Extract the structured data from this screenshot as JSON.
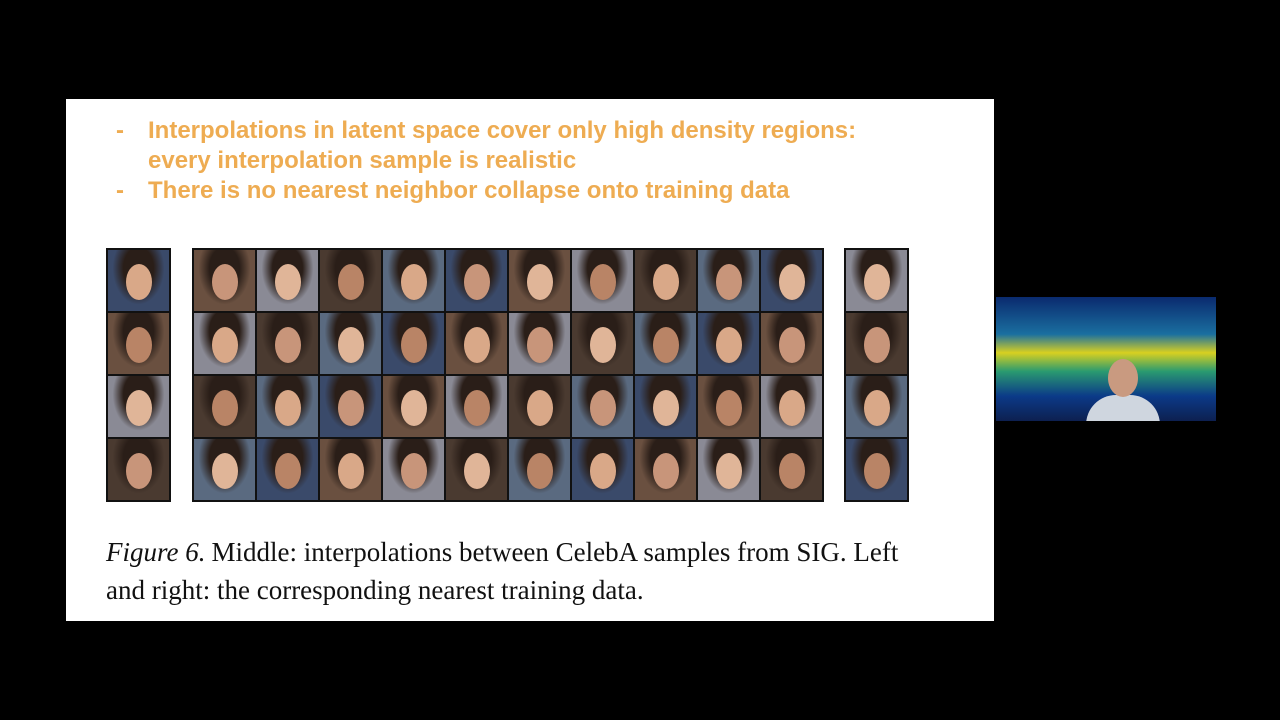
{
  "slide": {
    "bullets": [
      {
        "marker": "-",
        "text": "Interpolations in latent space cover only high density regions: every interpolation sample is realistic"
      },
      {
        "marker": "-",
        "text": "There is no nearest neighbor collapse onto training data"
      }
    ],
    "caption": {
      "label": "Figure 6.",
      "text": "Middle: interpolations between CelebA samples from SIG. Left and right: the corresponding nearest training data."
    }
  }
}
